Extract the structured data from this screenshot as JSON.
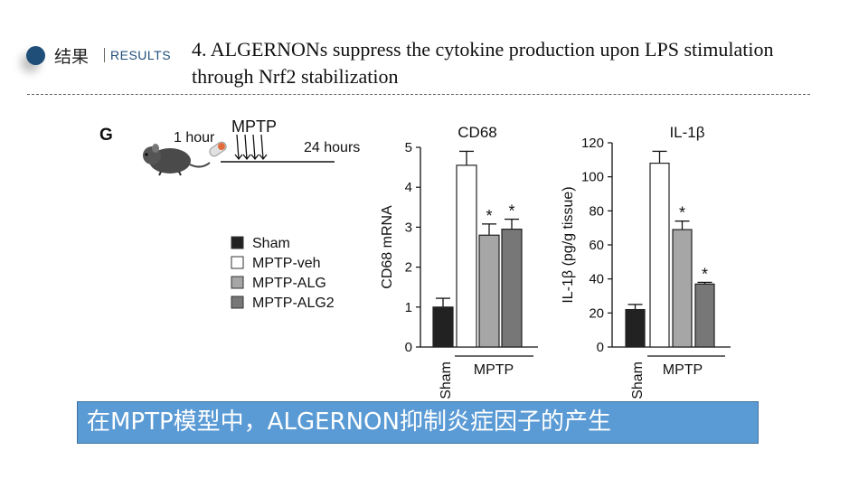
{
  "header": {
    "section_label": "结果",
    "section_sub": "RESULTS",
    "title": "4. ALGERNONs suppress the cytokine production upon LPS stimulation through Nrf2 stabilization"
  },
  "figure": {
    "panel_label": "G",
    "timeline": {
      "label_1": "1 hour",
      "label_2": "MPTP",
      "label_3": "24 hours"
    },
    "legend": [
      {
        "label": "Sham",
        "color": "#222222"
      },
      {
        "label": "MPTP-veh",
        "color": "#ffffff"
      },
      {
        "label": "MPTP-ALG",
        "color": "#a6a6a6"
      },
      {
        "label": "MPTP-ALG2",
        "color": "#777777"
      }
    ],
    "sig_marker": "*"
  },
  "chart_data": [
    {
      "type": "bar",
      "title": "CD68",
      "ylabel": "CD68  mRNA",
      "ylim": [
        0,
        5
      ],
      "yticks": [
        "0",
        "1",
        "2",
        "3",
        "4",
        "5"
      ],
      "categories": [
        "Sham",
        "MPTP-veh",
        "MPTP-ALG",
        "MPTP-ALG2"
      ],
      "values": [
        1.0,
        4.55,
        2.8,
        2.95
      ],
      "errors": [
        0.22,
        0.35,
        0.28,
        0.25
      ],
      "significant": [
        false,
        false,
        true,
        true
      ],
      "x_group_labels": [
        "Sham",
        "MPTP"
      ],
      "colors": [
        "#222222",
        "#ffffff",
        "#a6a6a6",
        "#777777"
      ]
    },
    {
      "type": "bar",
      "title": "IL-1β",
      "ylabel": "IL-1β  (pg/g tissue)",
      "ylim": [
        0,
        120
      ],
      "yticks": [
        "0",
        "20",
        "40",
        "60",
        "80",
        "100",
        "120"
      ],
      "categories": [
        "Sham",
        "MPTP-veh",
        "MPTP-ALG",
        "MPTP-ALG2"
      ],
      "values": [
        22,
        108,
        69,
        37
      ],
      "errors": [
        3,
        7,
        5,
        1
      ],
      "significant": [
        false,
        false,
        true,
        true
      ],
      "x_group_labels": [
        "Sham",
        "MPTP"
      ],
      "colors": [
        "#222222",
        "#ffffff",
        "#a6a6a6",
        "#777777"
      ]
    }
  ],
  "caption": "在MPTP模型中，ALGERNON抑制炎症因子的产生"
}
